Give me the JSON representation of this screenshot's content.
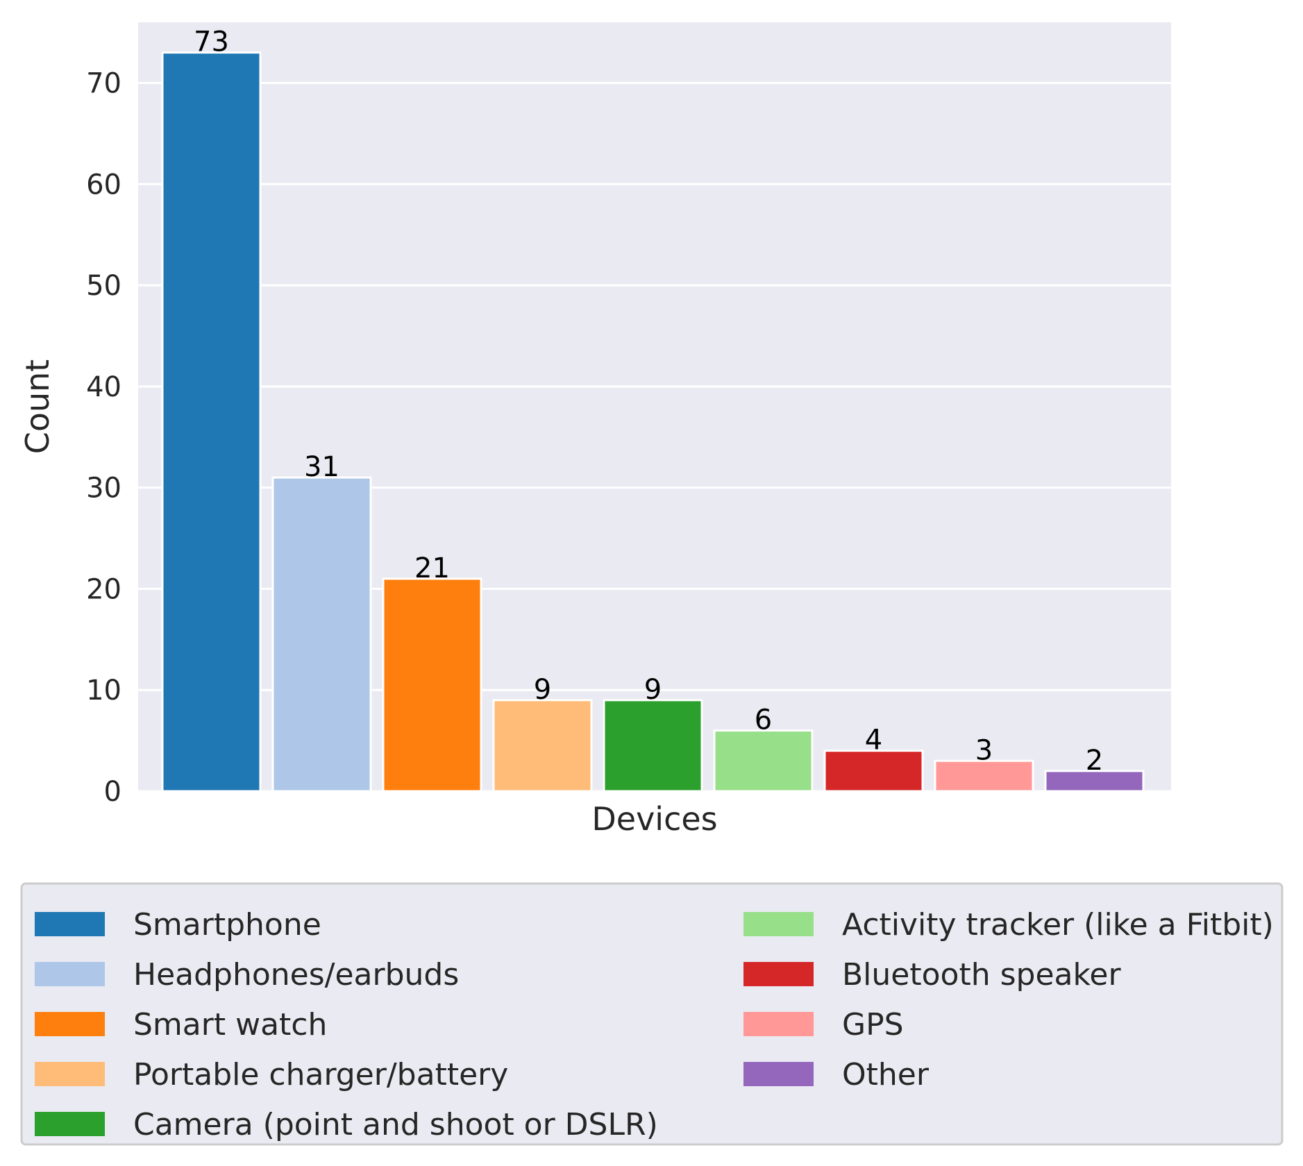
{
  "chart_data": {
    "type": "bar",
    "title": "",
    "xlabel": "Devices",
    "ylabel": "Count",
    "ylim": [
      0,
      76
    ],
    "yticks": [
      0,
      10,
      20,
      30,
      40,
      50,
      60,
      70
    ],
    "grid": true,
    "legend_position": "bottom",
    "categories": [
      "Smartphone",
      "Headphones/earbuds",
      "Smart watch",
      "Portable charger/battery",
      "Camera (point and shoot or DSLR)",
      "Activity tracker (like a Fitbit)",
      "Bluetooth speaker",
      "GPS",
      "Other"
    ],
    "values": [
      73,
      31,
      21,
      9,
      9,
      6,
      4,
      3,
      2
    ],
    "colors": [
      "#1f77b4",
      "#aec7e8",
      "#ff7f0e",
      "#ffbb78",
      "#2ca02c",
      "#98df8a",
      "#d62728",
      "#ff9896",
      "#9467bd"
    ]
  },
  "style": {
    "plot_background": "#eaeaf2",
    "legend_background": "#eaeaf2",
    "legend_border": "#cccccc",
    "grid_color": "#ffffff",
    "bar_edge": "#ffffff"
  }
}
